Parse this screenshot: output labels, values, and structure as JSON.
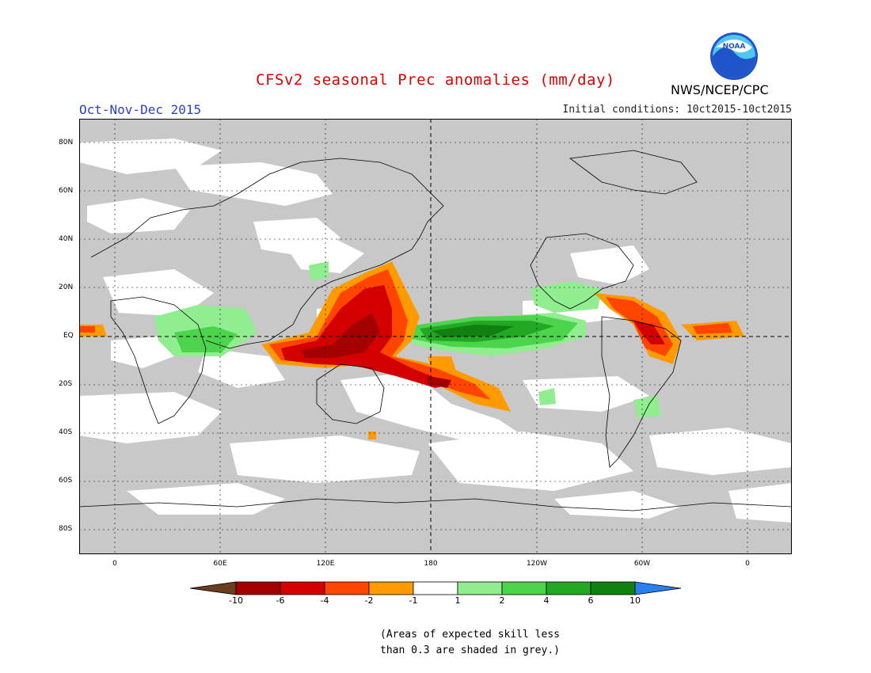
{
  "header": {
    "title": "CFSv2 seasonal Prec anomalies (mm/day)",
    "period": "Oct-Nov-Dec 2015",
    "initial_conditions": "Initial conditions: 10ct2015-10ct2015",
    "org": "NWS/NCEP/CPC",
    "logo_text": "NOAA"
  },
  "map": {
    "projection": "cylindrical",
    "lon_range": [
      -20,
      380
    ],
    "lat_range": [
      -90,
      90
    ],
    "lat_labels": [
      "80N",
      "60N",
      "40N",
      "20N",
      "EQ",
      "20S",
      "40S",
      "60S",
      "80S"
    ],
    "lon_labels": [
      "0",
      "60E",
      "120E",
      "180",
      "120W",
      "60W",
      "0"
    ],
    "grey_note_color": "#c8c8c8"
  },
  "colorbar": {
    "labels": [
      "-10",
      "-6",
      "-4",
      "-2",
      "-1",
      "1",
      "2",
      "4",
      "6",
      "10"
    ],
    "colors": [
      "#6b3f1e",
      "#a50000",
      "#d40000",
      "#ff4500",
      "#ff9b00",
      "#ffffff",
      "#90ee90",
      "#4cd44c",
      "#22a822",
      "#108010",
      "#2a7ff0"
    ]
  },
  "footnote": {
    "line1": "(Areas of expected skill less",
    "line2": "than 0.3 are shaded in grey.)"
  }
}
